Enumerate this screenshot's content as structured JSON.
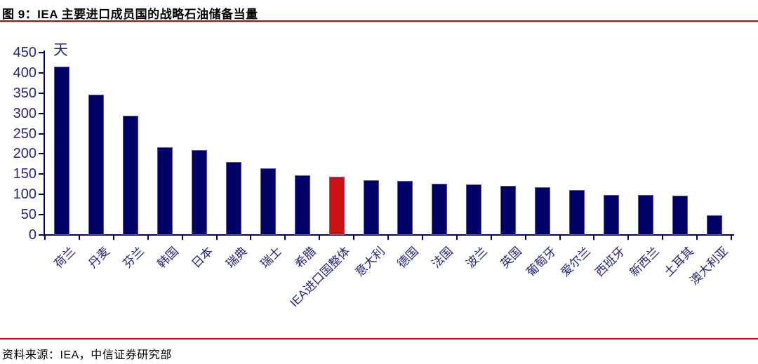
{
  "header": {
    "title": "图 9：IEA 主要进口成员国的战略石油储备当量"
  },
  "footer": {
    "source": "资料来源：IEA，中信证券研究部"
  },
  "colors": {
    "bar": "#000066",
    "highlight_bar": "#CC1111",
    "axis": "#000066",
    "tick_label": "#26267E",
    "rule_red": "#CC0000",
    "title_text": "#000000",
    "source_text": "#000000"
  },
  "chart_data": {
    "type": "bar",
    "title": "图 9：IEA 主要进口成员国的战略石油储备当量",
    "unit_label": "天",
    "categories": [
      "荷兰",
      "丹麦",
      "芬兰",
      "韩国",
      "日本",
      "瑞典",
      "瑞士",
      "希腊",
      "IEA进口国整体",
      "意大利",
      "德国",
      "法国",
      "波兰",
      "英国",
      "葡萄牙",
      "爱尔兰",
      "西班牙",
      "新西兰",
      "土耳其",
      "澳大利亚"
    ],
    "values": [
      415,
      347,
      295,
      216,
      209,
      180,
      165,
      147,
      143,
      135,
      133,
      126,
      124,
      122,
      117,
      111,
      99,
      98,
      97,
      49
    ],
    "highlight_category": "IEA进口国整体",
    "highlight_index": 8,
    "ylim": [
      0,
      450
    ],
    "yticks": [
      0,
      50,
      100,
      150,
      200,
      250,
      300,
      350,
      400,
      450
    ],
    "xlabel": "",
    "ylabel": "天",
    "grid": false,
    "legend": "none"
  }
}
